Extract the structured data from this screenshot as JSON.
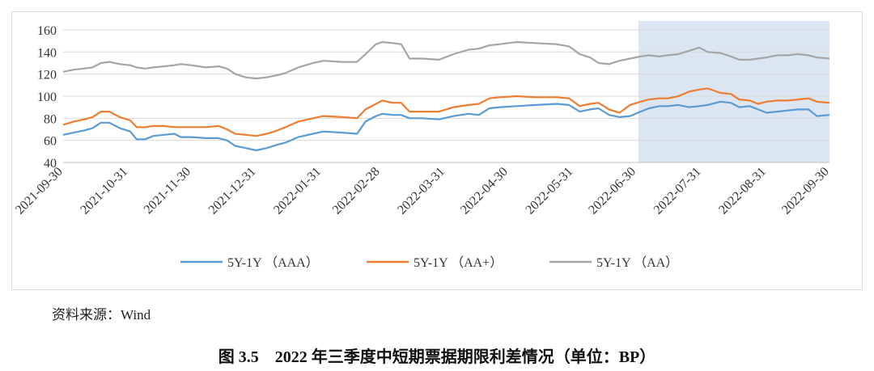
{
  "source_note": "资料来源：Wind",
  "caption": "图 3.5　2022 年三季度中短期票据期限利差情况（单位：BP）",
  "chart_data": {
    "type": "line",
    "y_ticks": [
      40,
      60,
      80,
      100,
      120,
      140,
      160
    ],
    "ylim": [
      40,
      168
    ],
    "grid": true,
    "legend_position": "bottom",
    "x_range": [
      "2021-09-30",
      "2022-09-30"
    ],
    "x_tick_labels": [
      "2021-09-30",
      "2021-10-31",
      "2021-11-30",
      "2021-12-31",
      "2022-01-31",
      "2022-02-28",
      "2022-03-31",
      "2022-04-30",
      "2022-05-31",
      "2022-06-30",
      "2022-07-31",
      "2022-08-31",
      "2022-09-30"
    ],
    "highlight_region": {
      "from": "2022-07-01",
      "to": "2022-09-30",
      "color": "#dce6f2"
    },
    "series": [
      {
        "name": "5Y-1Y （AAA）",
        "color": "#5b9bd5",
        "points": [
          [
            "2021-09-30",
            65
          ],
          [
            "2021-10-05",
            67
          ],
          [
            "2021-10-10",
            69
          ],
          [
            "2021-10-14",
            71
          ],
          [
            "2021-10-18",
            76
          ],
          [
            "2021-10-22",
            76
          ],
          [
            "2021-10-27",
            71
          ],
          [
            "2021-11-01",
            68
          ],
          [
            "2021-11-04",
            61
          ],
          [
            "2021-11-08",
            61
          ],
          [
            "2021-11-12",
            64
          ],
          [
            "2021-11-17",
            65
          ],
          [
            "2021-11-22",
            66
          ],
          [
            "2021-11-25",
            63
          ],
          [
            "2021-11-30",
            63
          ],
          [
            "2021-12-07",
            62
          ],
          [
            "2021-12-13",
            62
          ],
          [
            "2021-12-17",
            60
          ],
          [
            "2021-12-21",
            55
          ],
          [
            "2021-12-26",
            53
          ],
          [
            "2021-12-31",
            51
          ],
          [
            "2022-01-05",
            53
          ],
          [
            "2022-01-10",
            56
          ],
          [
            "2022-01-14",
            58
          ],
          [
            "2022-01-20",
            63
          ],
          [
            "2022-01-27",
            66
          ],
          [
            "2022-02-01",
            68
          ],
          [
            "2022-02-10",
            67
          ],
          [
            "2022-02-17",
            66
          ],
          [
            "2022-02-21",
            77
          ],
          [
            "2022-02-26",
            82
          ],
          [
            "2022-03-01",
            84
          ],
          [
            "2022-03-06",
            83
          ],
          [
            "2022-03-10",
            83
          ],
          [
            "2022-03-14",
            80
          ],
          [
            "2022-03-20",
            80
          ],
          [
            "2022-03-28",
            79
          ],
          [
            "2022-04-04",
            82
          ],
          [
            "2022-04-11",
            84
          ],
          [
            "2022-04-16",
            83
          ],
          [
            "2022-04-21",
            89
          ],
          [
            "2022-04-26",
            90
          ],
          [
            "2022-05-04",
            91
          ],
          [
            "2022-05-13",
            92
          ],
          [
            "2022-05-23",
            93
          ],
          [
            "2022-05-29",
            92
          ],
          [
            "2022-06-03",
            86
          ],
          [
            "2022-06-08",
            88
          ],
          [
            "2022-06-12",
            89
          ],
          [
            "2022-06-17",
            83
          ],
          [
            "2022-06-22",
            81
          ],
          [
            "2022-06-27",
            82
          ],
          [
            "2022-07-02",
            86
          ],
          [
            "2022-07-06",
            89
          ],
          [
            "2022-07-11",
            91
          ],
          [
            "2022-07-15",
            91
          ],
          [
            "2022-07-20",
            92
          ],
          [
            "2022-07-25",
            90
          ],
          [
            "2022-07-30",
            91
          ],
          [
            "2022-08-03",
            92
          ],
          [
            "2022-08-09",
            95
          ],
          [
            "2022-08-14",
            94
          ],
          [
            "2022-08-18",
            90
          ],
          [
            "2022-08-23",
            91
          ],
          [
            "2022-08-27",
            88
          ],
          [
            "2022-08-31",
            85
          ],
          [
            "2022-09-05",
            86
          ],
          [
            "2022-09-10",
            87
          ],
          [
            "2022-09-15",
            88
          ],
          [
            "2022-09-20",
            88
          ],
          [
            "2022-09-24",
            82
          ],
          [
            "2022-09-30",
            83
          ]
        ]
      },
      {
        "name": "5Y-1Y （AA+）",
        "color": "#ed7d31",
        "points": [
          [
            "2021-09-30",
            74
          ],
          [
            "2021-10-05",
            77
          ],
          [
            "2021-10-10",
            79
          ],
          [
            "2021-10-14",
            81
          ],
          [
            "2021-10-18",
            86
          ],
          [
            "2021-10-22",
            86
          ],
          [
            "2021-10-27",
            81
          ],
          [
            "2021-11-01",
            78
          ],
          [
            "2021-11-04",
            72
          ],
          [
            "2021-11-08",
            72
          ],
          [
            "2021-11-12",
            73
          ],
          [
            "2021-11-17",
            73
          ],
          [
            "2021-11-22",
            72
          ],
          [
            "2021-11-25",
            72
          ],
          [
            "2021-11-30",
            72
          ],
          [
            "2021-12-07",
            72
          ],
          [
            "2021-12-13",
            73
          ],
          [
            "2021-12-17",
            70
          ],
          [
            "2021-12-21",
            66
          ],
          [
            "2021-12-26",
            65
          ],
          [
            "2021-12-31",
            64
          ],
          [
            "2022-01-05",
            66
          ],
          [
            "2022-01-10",
            69
          ],
          [
            "2022-01-14",
            72
          ],
          [
            "2022-01-20",
            77
          ],
          [
            "2022-01-27",
            80
          ],
          [
            "2022-02-01",
            82
          ],
          [
            "2022-02-10",
            81
          ],
          [
            "2022-02-17",
            80
          ],
          [
            "2022-02-21",
            88
          ],
          [
            "2022-02-26",
            93
          ],
          [
            "2022-03-01",
            96
          ],
          [
            "2022-03-06",
            94
          ],
          [
            "2022-03-10",
            94
          ],
          [
            "2022-03-14",
            86
          ],
          [
            "2022-03-20",
            86
          ],
          [
            "2022-03-28",
            86
          ],
          [
            "2022-04-04",
            90
          ],
          [
            "2022-04-11",
            92
          ],
          [
            "2022-04-16",
            93
          ],
          [
            "2022-04-21",
            98
          ],
          [
            "2022-04-26",
            99
          ],
          [
            "2022-05-04",
            100
          ],
          [
            "2022-05-13",
            99
          ],
          [
            "2022-05-23",
            99
          ],
          [
            "2022-05-29",
            98
          ],
          [
            "2022-06-03",
            91
          ],
          [
            "2022-06-08",
            93
          ],
          [
            "2022-06-12",
            94
          ],
          [
            "2022-06-17",
            88
          ],
          [
            "2022-06-22",
            85
          ],
          [
            "2022-06-27",
            92
          ],
          [
            "2022-07-02",
            95
          ],
          [
            "2022-07-06",
            97
          ],
          [
            "2022-07-11",
            98
          ],
          [
            "2022-07-15",
            98
          ],
          [
            "2022-07-20",
            100
          ],
          [
            "2022-07-25",
            104
          ],
          [
            "2022-07-30",
            106
          ],
          [
            "2022-08-03",
            107
          ],
          [
            "2022-08-09",
            103
          ],
          [
            "2022-08-14",
            102
          ],
          [
            "2022-08-18",
            97
          ],
          [
            "2022-08-23",
            96
          ],
          [
            "2022-08-27",
            93
          ],
          [
            "2022-08-31",
            95
          ],
          [
            "2022-09-05",
            96
          ],
          [
            "2022-09-10",
            96
          ],
          [
            "2022-09-15",
            97
          ],
          [
            "2022-09-20",
            98
          ],
          [
            "2022-09-24",
            95
          ],
          [
            "2022-09-30",
            94
          ]
        ]
      },
      {
        "name": "5Y-1Y （AA）",
        "color": "#a5a5a5",
        "points": [
          [
            "2021-09-30",
            122
          ],
          [
            "2021-10-05",
            124
          ],
          [
            "2021-10-10",
            125
          ],
          [
            "2021-10-14",
            126
          ],
          [
            "2021-10-18",
            130
          ],
          [
            "2021-10-22",
            131
          ],
          [
            "2021-10-27",
            129
          ],
          [
            "2021-11-01",
            128
          ],
          [
            "2021-11-04",
            126
          ],
          [
            "2021-11-08",
            125
          ],
          [
            "2021-11-12",
            126
          ],
          [
            "2021-11-17",
            127
          ],
          [
            "2021-11-22",
            128
          ],
          [
            "2021-11-25",
            129
          ],
          [
            "2021-11-30",
            128
          ],
          [
            "2021-12-07",
            126
          ],
          [
            "2021-12-13",
            127
          ],
          [
            "2021-12-17",
            125
          ],
          [
            "2021-12-21",
            120
          ],
          [
            "2021-12-26",
            117
          ],
          [
            "2021-12-31",
            116
          ],
          [
            "2022-01-05",
            117
          ],
          [
            "2022-01-10",
            119
          ],
          [
            "2022-01-14",
            121
          ],
          [
            "2022-01-20",
            126
          ],
          [
            "2022-01-27",
            130
          ],
          [
            "2022-02-01",
            132
          ],
          [
            "2022-02-10",
            131
          ],
          [
            "2022-02-17",
            131
          ],
          [
            "2022-02-21",
            138
          ],
          [
            "2022-02-26",
            147
          ],
          [
            "2022-03-01",
            149
          ],
          [
            "2022-03-06",
            148
          ],
          [
            "2022-03-10",
            147
          ],
          [
            "2022-03-14",
            134
          ],
          [
            "2022-03-20",
            134
          ],
          [
            "2022-03-28",
            133
          ],
          [
            "2022-04-04",
            138
          ],
          [
            "2022-04-11",
            142
          ],
          [
            "2022-04-16",
            143
          ],
          [
            "2022-04-21",
            146
          ],
          [
            "2022-04-26",
            147
          ],
          [
            "2022-05-04",
            149
          ],
          [
            "2022-05-13",
            148
          ],
          [
            "2022-05-23",
            147
          ],
          [
            "2022-05-29",
            145
          ],
          [
            "2022-06-03",
            138
          ],
          [
            "2022-06-08",
            135
          ],
          [
            "2022-06-12",
            130
          ],
          [
            "2022-06-17",
            129
          ],
          [
            "2022-06-22",
            132
          ],
          [
            "2022-06-27",
            134
          ],
          [
            "2022-07-02",
            136
          ],
          [
            "2022-07-06",
            137
          ],
          [
            "2022-07-11",
            136
          ],
          [
            "2022-07-15",
            137
          ],
          [
            "2022-07-20",
            138
          ],
          [
            "2022-07-25",
            141
          ],
          [
            "2022-07-30",
            144
          ],
          [
            "2022-08-03",
            140
          ],
          [
            "2022-08-09",
            139
          ],
          [
            "2022-08-14",
            136
          ],
          [
            "2022-08-18",
            133
          ],
          [
            "2022-08-23",
            133
          ],
          [
            "2022-08-27",
            134
          ],
          [
            "2022-08-31",
            135
          ],
          [
            "2022-09-05",
            137
          ],
          [
            "2022-09-10",
            137
          ],
          [
            "2022-09-15",
            138
          ],
          [
            "2022-09-20",
            137
          ],
          [
            "2022-09-24",
            135
          ],
          [
            "2022-09-30",
            134
          ]
        ]
      }
    ]
  }
}
